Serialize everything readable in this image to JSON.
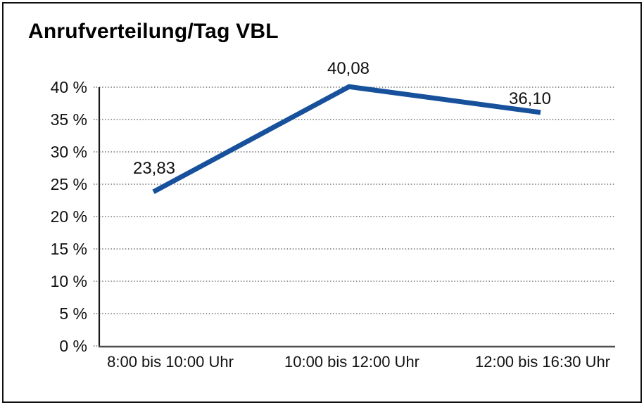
{
  "chart_data": {
    "type": "line",
    "title": "Anrufverteilung/Tag VBL",
    "categories": [
      "8:00 bis 10:00 Uhr",
      "10:00 bis 12:00 Uhr",
      "12:00 bis 16:30 Uhr"
    ],
    "values": [
      23.83,
      40.08,
      36.1
    ],
    "value_labels": [
      "23,83",
      "40,08",
      "36,10"
    ],
    "xlabel": "",
    "ylabel": "",
    "ylim": [
      0,
      40
    ],
    "ytick_step": 5,
    "ytick_labels": [
      "0 %",
      "5 %",
      "10 %",
      "15 %",
      "20 %",
      "25 %",
      "30 %",
      "35 %",
      "40 %"
    ],
    "grid": "dotted-horizontal",
    "legend": "none",
    "colors": {
      "line": "#17509B",
      "y_axis": "#1a1a1a",
      "x_axis": "#4d4d4d",
      "gridline": "#555555",
      "text": "#111111",
      "background": "#ffffff",
      "frame_border": "#111111"
    }
  }
}
